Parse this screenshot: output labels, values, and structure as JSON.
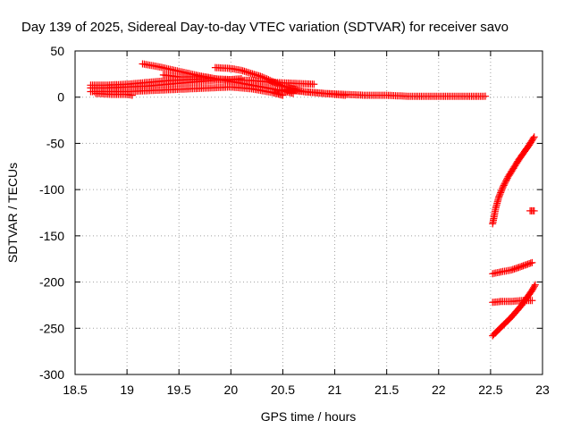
{
  "chart_data": {
    "type": "scatter",
    "title": "Day 139 of 2025, Sidereal Day-to-day VTEC variation (SDTVAR) for receiver savo",
    "xlabel": "GPS time / hours",
    "ylabel": "SDTVAR / TECUs",
    "xlim": [
      18.5,
      23
    ],
    "ylim": [
      -300,
      50
    ],
    "grid": true,
    "x_ticks": [
      {
        "value": 18.5,
        "label": "18.5"
      },
      {
        "value": 19,
        "label": "19"
      },
      {
        "value": 19.5,
        "label": "19.5"
      },
      {
        "value": 20,
        "label": "20"
      },
      {
        "value": 20.5,
        "label": "20.5"
      },
      {
        "value": 21,
        "label": "21"
      },
      {
        "value": 21.5,
        "label": "21.5"
      },
      {
        "value": 22,
        "label": "22"
      },
      {
        "value": 22.5,
        "label": "22.5"
      },
      {
        "value": 23,
        "label": "23"
      }
    ],
    "y_ticks": [
      {
        "value": 50,
        "label": "50"
      },
      {
        "value": 0,
        "label": "0"
      },
      {
        "value": -50,
        "label": "-50"
      },
      {
        "value": -100,
        "label": "-100"
      },
      {
        "value": -150,
        "label": "-150"
      },
      {
        "value": -200,
        "label": "-200"
      },
      {
        "value": -250,
        "label": "-250"
      },
      {
        "value": -300,
        "label": "-300"
      }
    ],
    "marker_color": "#ff0000",
    "marker": "plus",
    "series": [
      {
        "points": [
          [
            18.65,
            13
          ],
          [
            18.8,
            13
          ],
          [
            19.0,
            14
          ],
          [
            19.2,
            16
          ],
          [
            19.4,
            18
          ],
          [
            19.6,
            19
          ],
          [
            19.8,
            20
          ],
          [
            20.0,
            19
          ],
          [
            20.2,
            18
          ],
          [
            20.4,
            16
          ],
          [
            20.6,
            15
          ],
          [
            20.8,
            14
          ]
        ]
      },
      {
        "points": [
          [
            18.65,
            10
          ],
          [
            18.8,
            10
          ],
          [
            19.0,
            11
          ],
          [
            19.2,
            12
          ],
          [
            19.4,
            14
          ],
          [
            19.6,
            16
          ],
          [
            19.8,
            18
          ],
          [
            20.0,
            19
          ],
          [
            20.1,
            20
          ]
        ]
      },
      {
        "points": [
          [
            18.65,
            6
          ],
          [
            18.8,
            6
          ],
          [
            19.0,
            6
          ],
          [
            19.2,
            7
          ],
          [
            19.4,
            8
          ],
          [
            19.6,
            9
          ],
          [
            19.8,
            10
          ],
          [
            20.0,
            11
          ],
          [
            20.2,
            9
          ],
          [
            20.4,
            5
          ],
          [
            20.5,
            2
          ]
        ]
      },
      {
        "points": [
          [
            18.7,
            4
          ],
          [
            18.85,
            3
          ],
          [
            19.0,
            3
          ],
          [
            19.05,
            2
          ]
        ]
      },
      {
        "points": [
          [
            19.15,
            36
          ],
          [
            19.3,
            33
          ],
          [
            19.5,
            28
          ],
          [
            19.7,
            23
          ],
          [
            19.9,
            19
          ],
          [
            20.1,
            15
          ],
          [
            20.3,
            11
          ],
          [
            20.5,
            7
          ],
          [
            20.6,
            4
          ]
        ]
      },
      {
        "points": [
          [
            19.35,
            24
          ],
          [
            19.5,
            22
          ],
          [
            19.7,
            22
          ],
          [
            19.8,
            21
          ]
        ]
      },
      {
        "points": [
          [
            19.85,
            32
          ],
          [
            20.0,
            31
          ],
          [
            20.1,
            29
          ],
          [
            20.3,
            22
          ],
          [
            20.5,
            12
          ],
          [
            20.7,
            6
          ],
          [
            20.9,
            4
          ],
          [
            21.1,
            2
          ]
        ]
      },
      {
        "points": [
          [
            20.5,
            8
          ],
          [
            20.7,
            6
          ],
          [
            20.9,
            4
          ],
          [
            21.1,
            3
          ],
          [
            21.3,
            2
          ],
          [
            21.5,
            2
          ],
          [
            21.7,
            1
          ],
          [
            21.9,
            1
          ],
          [
            22.1,
            1
          ],
          [
            22.3,
            1
          ],
          [
            22.45,
            1
          ]
        ]
      },
      {
        "points": [
          [
            22.52,
            -137
          ],
          [
            22.55,
            -120
          ],
          [
            22.58,
            -108
          ],
          [
            22.62,
            -97
          ],
          [
            22.67,
            -86
          ],
          [
            22.72,
            -77
          ],
          [
            22.77,
            -68
          ],
          [
            22.82,
            -60
          ],
          [
            22.87,
            -52
          ],
          [
            22.92,
            -43
          ]
        ]
      },
      {
        "points": [
          [
            22.88,
            -123
          ],
          [
            22.92,
            -123
          ]
        ]
      },
      {
        "points": [
          [
            22.52,
            -191
          ],
          [
            22.6,
            -189
          ],
          [
            22.7,
            -187
          ],
          [
            22.8,
            -183
          ],
          [
            22.9,
            -179
          ]
        ]
      },
      {
        "points": [
          [
            22.52,
            -222
          ],
          [
            22.6,
            -221
          ],
          [
            22.7,
            -221
          ],
          [
            22.8,
            -220
          ],
          [
            22.9,
            -220
          ]
        ]
      },
      {
        "points": [
          [
            22.52,
            -258
          ],
          [
            22.6,
            -249
          ],
          [
            22.7,
            -238
          ],
          [
            22.8,
            -225
          ],
          [
            22.9,
            -209
          ],
          [
            22.93,
            -203
          ]
        ]
      }
    ]
  }
}
